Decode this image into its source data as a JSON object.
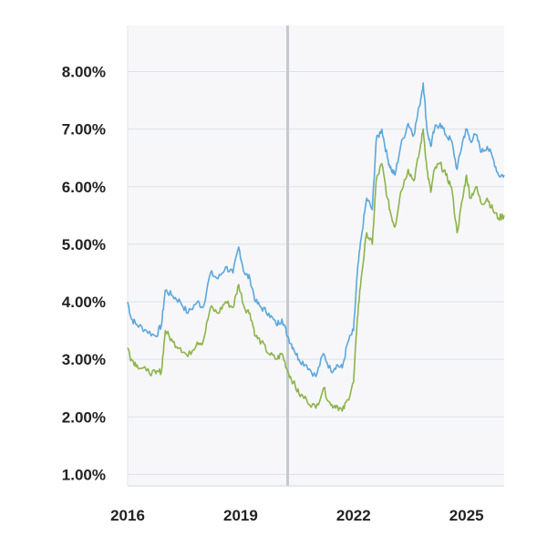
{
  "chart_data": {
    "type": "line",
    "title": "",
    "xlabel": "",
    "ylabel": "",
    "xlim": [
      2016.0,
      2026.0
    ],
    "ylim": [
      0.8,
      8.8
    ],
    "x_ticks": [
      "2016",
      "2019",
      "2022",
      "2025"
    ],
    "y_ticks": [
      "1.00%",
      "2.00%",
      "3.00%",
      "4.00%",
      "5.00%",
      "6.00%",
      "7.00%",
      "8.00%"
    ],
    "grid": true,
    "legend": "none",
    "marker_line_x": 2020.25,
    "series": [
      {
        "color": "#5aa7dd",
        "x": [
          2016.0,
          2016.1,
          2016.25,
          2016.5,
          2016.75,
          2016.9,
          2017.0,
          2017.2,
          2017.4,
          2017.6,
          2017.85,
          2018.0,
          2018.2,
          2018.4,
          2018.6,
          2018.8,
          2018.95,
          2019.1,
          2019.25,
          2019.4,
          2019.55,
          2019.75,
          2019.95,
          2020.1,
          2020.25,
          2020.4,
          2020.55,
          2020.75,
          2021.0,
          2021.2,
          2021.4,
          2021.55,
          2021.7,
          2021.85,
          2022.0,
          2022.1,
          2022.2,
          2022.35,
          2022.5,
          2022.6,
          2022.75,
          2022.9,
          2023.0,
          2023.1,
          2023.25,
          2023.45,
          2023.6,
          2023.75,
          2023.85,
          2023.95,
          2024.05,
          2024.15,
          2024.3,
          2024.45,
          2024.6,
          2024.75,
          2024.9,
          2025.0,
          2025.1,
          2025.25,
          2025.4,
          2025.55,
          2025.7,
          2025.85,
          2026.0
        ],
        "y": [
          4.0,
          3.7,
          3.6,
          3.5,
          3.4,
          3.6,
          4.2,
          4.1,
          4.0,
          3.8,
          4.0,
          3.9,
          4.5,
          4.4,
          4.6,
          4.5,
          4.95,
          4.5,
          4.4,
          4.0,
          3.9,
          3.8,
          3.6,
          3.7,
          3.4,
          3.2,
          3.0,
          2.9,
          2.7,
          3.1,
          2.8,
          2.9,
          2.85,
          3.3,
          3.5,
          4.5,
          5.1,
          5.8,
          5.6,
          6.8,
          7.0,
          6.5,
          6.3,
          6.2,
          6.7,
          7.1,
          6.9,
          7.4,
          7.8,
          7.0,
          6.7,
          7.0,
          7.1,
          6.9,
          6.8,
          6.3,
          6.8,
          7.0,
          6.8,
          6.9,
          6.6,
          6.7,
          6.5,
          6.2,
          6.2
        ]
      },
      {
        "color": "#8cb44a",
        "x": [
          2016.0,
          2016.1,
          2016.25,
          2016.5,
          2016.75,
          2016.9,
          2017.0,
          2017.2,
          2017.4,
          2017.6,
          2017.85,
          2018.0,
          2018.2,
          2018.4,
          2018.6,
          2018.8,
          2018.95,
          2019.1,
          2019.25,
          2019.4,
          2019.55,
          2019.75,
          2019.95,
          2020.1,
          2020.25,
          2020.4,
          2020.55,
          2020.75,
          2021.0,
          2021.2,
          2021.4,
          2021.55,
          2021.7,
          2021.85,
          2022.0,
          2022.1,
          2022.2,
          2022.35,
          2022.5,
          2022.6,
          2022.75,
          2022.9,
          2023.0,
          2023.1,
          2023.25,
          2023.45,
          2023.6,
          2023.75,
          2023.85,
          2023.95,
          2024.05,
          2024.15,
          2024.3,
          2024.45,
          2024.6,
          2024.75,
          2024.9,
          2025.0,
          2025.1,
          2025.25,
          2025.4,
          2025.55,
          2025.7,
          2025.85,
          2026.0
        ],
        "y": [
          3.2,
          3.0,
          2.9,
          2.8,
          2.75,
          2.8,
          3.5,
          3.3,
          3.2,
          3.05,
          3.3,
          3.3,
          3.9,
          3.8,
          4.0,
          3.9,
          4.3,
          3.9,
          3.8,
          3.4,
          3.3,
          3.1,
          3.0,
          3.1,
          2.8,
          2.6,
          2.4,
          2.3,
          2.15,
          2.5,
          2.2,
          2.2,
          2.1,
          2.3,
          2.6,
          3.7,
          4.4,
          5.2,
          5.0,
          6.1,
          6.4,
          5.8,
          5.5,
          5.3,
          5.9,
          6.3,
          6.1,
          6.6,
          7.0,
          6.3,
          5.9,
          6.3,
          6.4,
          6.2,
          6.0,
          5.2,
          5.8,
          6.2,
          5.8,
          6.0,
          5.7,
          5.8,
          5.6,
          5.45,
          5.5
        ]
      }
    ]
  }
}
